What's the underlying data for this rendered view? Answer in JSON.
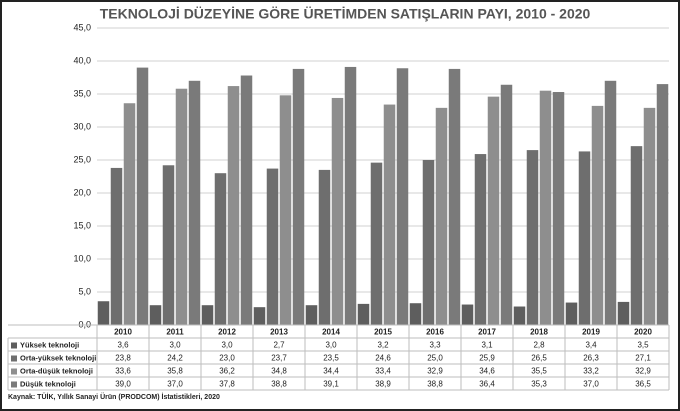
{
  "chart_data": {
    "type": "bar",
    "title": "TEKNOLOJİ DÜZEYİNE GÖRE ÜRETİMDEN SATIŞLARIN PAYI, 2010 - 2020",
    "categories": [
      "2010",
      "2011",
      "2012",
      "2013",
      "2014",
      "2015",
      "2016",
      "2017",
      "2018",
      "2019",
      "2020"
    ],
    "series": [
      {
        "name": "Yüksek teknoloji",
        "color": "#5e5e5e",
        "values": [
          3.6,
          3.0,
          3.0,
          2.7,
          3.0,
          3.2,
          3.3,
          3.1,
          2.8,
          3.4,
          3.5
        ],
        "value_labels": [
          "3,6",
          "3,0",
          "3,0",
          "2,7",
          "3,0",
          "3,2",
          "3,3",
          "3,1",
          "2,8",
          "3,4",
          "3,5"
        ]
      },
      {
        "name": "Orta-yüksek teknoloji",
        "color": "#6e6e6e",
        "values": [
          23.8,
          24.2,
          23.0,
          23.7,
          23.5,
          24.6,
          25.0,
          25.9,
          26.5,
          26.3,
          27.1
        ],
        "value_labels": [
          "23,8",
          "24,2",
          "23,0",
          "23,7",
          "23,5",
          "24,6",
          "25,0",
          "25,9",
          "26,5",
          "26,3",
          "27,1"
        ]
      },
      {
        "name": "Orta-düşük teknoloji",
        "color": "#8e8e8e",
        "values": [
          33.6,
          35.8,
          36.2,
          34.8,
          34.4,
          33.4,
          32.9,
          34.6,
          35.5,
          33.2,
          32.9
        ],
        "value_labels": [
          "33,6",
          "35,8",
          "36,2",
          "34,8",
          "34,4",
          "33,4",
          "32,9",
          "34,6",
          "35,5",
          "33,2",
          "32,9"
        ]
      },
      {
        "name": "Düşük teknoloji",
        "color": "#7a7a7a",
        "values": [
          39.0,
          37.0,
          37.8,
          38.8,
          39.1,
          38.9,
          38.8,
          36.4,
          35.3,
          37.0,
          36.5
        ],
        "value_labels": [
          "39,0",
          "37,0",
          "37,8",
          "38,8",
          "39,1",
          "38,9",
          "38,8",
          "36,4",
          "35,3",
          "37,0",
          "36,5"
        ]
      }
    ],
    "ylim": [
      0,
      45
    ],
    "yticks": [
      {
        "value": 0,
        "label": "0,0"
      },
      {
        "value": 5,
        "label": "5,0"
      },
      {
        "value": 10,
        "label": "10,0"
      },
      {
        "value": 15,
        "label": "15,0"
      },
      {
        "value": 20,
        "label": "20,0"
      },
      {
        "value": 25,
        "label": "25,0"
      },
      {
        "value": 30,
        "label": "30,0"
      },
      {
        "value": 35,
        "label": "35,0"
      },
      {
        "value": 40,
        "label": "40,0"
      },
      {
        "value": 45,
        "label": "45,0"
      }
    ],
    "grid": true,
    "source": "Kaynak: TÜİK, Yıllık Sanayi Ürün (PRODCOM) İstatistikleri, 2020"
  }
}
